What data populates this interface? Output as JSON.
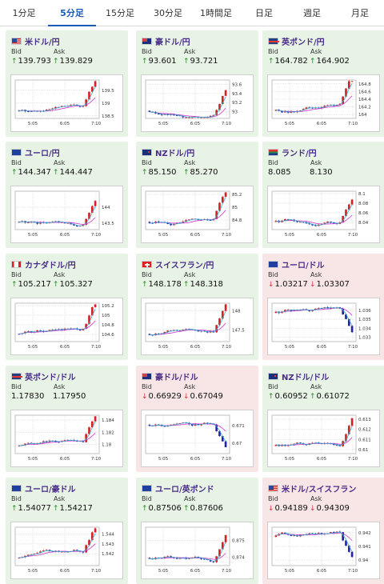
{
  "tabs": [
    "1分足",
    "5分足",
    "15分足",
    "30分足",
    "1時間足",
    "日足",
    "週足",
    "月足"
  ],
  "active_tab": 1,
  "labels": {
    "bid": "Bid",
    "ask": "Ask"
  },
  "x_ticks": [
    "5:05",
    "6:05",
    "7:10"
  ],
  "cards": [
    {
      "name": "米ドル/円",
      "flag": "us",
      "trend": "up",
      "bid": "139.793",
      "ask": "139.829",
      "bid_dir": "up",
      "ask_dir": "up",
      "y_ticks": [
        "139.5",
        "139",
        "138.5"
      ],
      "ymin": 138.4,
      "ymax": 139.9
    },
    {
      "name": "豪ドル/円",
      "flag": "au",
      "trend": "up",
      "bid": "93.601",
      "ask": "93.721",
      "bid_dir": "up",
      "ask_dir": "up",
      "y_ticks": [
        "93.6",
        "93.4",
        "93.2",
        "93"
      ],
      "ymin": 92.85,
      "ymax": 93.7
    },
    {
      "name": "英ポンド/円",
      "flag": "gb",
      "trend": "up",
      "bid": "164.782",
      "ask": "164.902",
      "bid_dir": "up",
      "ask_dir": "up",
      "y_ticks": [
        "164.8",
        "164.6",
        "164.4",
        "164.2",
        "164"
      ],
      "ymin": 163.9,
      "ymax": 164.9
    },
    {
      "name": "ユーロ/円",
      "flag": "eu",
      "trend": "up",
      "bid": "144.347",
      "ask": "144.447",
      "bid_dir": "up",
      "ask_dir": "up",
      "y_ticks": [
        "144",
        "143.5"
      ],
      "ymin": 143.3,
      "ymax": 144.5
    },
    {
      "name": "NZドル/円",
      "flag": "nz",
      "trend": "up",
      "bid": "85.150",
      "ask": "85.270",
      "bid_dir": "up",
      "ask_dir": "up",
      "y_ticks": [
        "85.2",
        "85",
        "84.8"
      ],
      "ymin": 84.65,
      "ymax": 85.25
    },
    {
      "name": "ランド/円",
      "flag": "za",
      "trend": "up",
      "bid": "8.085",
      "ask": "8.130",
      "bid_dir": "none",
      "ask_dir": "none",
      "y_ticks": [
        "8.1",
        "8.08",
        "8.06",
        "8.04"
      ],
      "ymin": 8.025,
      "ymax": 8.105
    },
    {
      "name": "カナダドル/円",
      "flag": "ca",
      "trend": "up",
      "bid": "105.217",
      "ask": "105.327",
      "bid_dir": "up",
      "ask_dir": "up",
      "y_ticks": [
        "105.2",
        "105",
        "104.8",
        "104.6"
      ],
      "ymin": 104.45,
      "ymax": 105.25
    },
    {
      "name": "スイスフラン/円",
      "flag": "ch",
      "trend": "up",
      "bid": "148.178",
      "ask": "148.318",
      "bid_dir": "up",
      "ask_dir": "up",
      "y_ticks": [
        "148",
        "147.5"
      ],
      "ymin": 147.2,
      "ymax": 148.2
    },
    {
      "name": "ユーロ/ドル",
      "flag": "eu",
      "trend": "down",
      "bid": "1.03217",
      "ask": "1.03307",
      "bid_dir": "down",
      "ask_dir": "down",
      "y_ticks": [
        "1.036",
        "1.035",
        "1.034",
        "1.033"
      ],
      "ymin": 1.0325,
      "ymax": 1.0368
    },
    {
      "name": "英ポンド/ドル",
      "flag": "gb",
      "trend": "up",
      "bid": "1.17830",
      "ask": "1.17950",
      "bid_dir": "none",
      "ask_dir": "none",
      "y_ticks": [
        "1.184",
        "1.182",
        "1.18"
      ],
      "ymin": 1.1785,
      "ymax": 1.1848
    },
    {
      "name": "豪ドル/ドル",
      "flag": "au",
      "trend": "down",
      "bid": "0.66929",
      "ask": "0.67049",
      "bid_dir": "down",
      "ask_dir": "down",
      "y_ticks": [
        "0.671",
        "0.67"
      ],
      "ymin": 0.6694,
      "ymax": 0.6716
    },
    {
      "name": "NZドル/ドル",
      "flag": "nz",
      "trend": "up",
      "bid": "0.60952",
      "ask": "0.61072",
      "bid_dir": "up",
      "ask_dir": "up",
      "y_ticks": [
        "0.613",
        "0.612",
        "0.611",
        "0.61"
      ],
      "ymin": 0.6096,
      "ymax": 0.6134
    },
    {
      "name": "ユーロ/豪ドル",
      "flag": "eu",
      "trend": "up",
      "bid": "1.54077",
      "ask": "1.54217",
      "bid_dir": "up",
      "ask_dir": "up",
      "y_ticks": [
        "1.544",
        "1.543",
        "1.542"
      ],
      "ymin": 1.5408,
      "ymax": 1.5447
    },
    {
      "name": "ユーロ/英ポンド",
      "flag": "eu",
      "trend": "up",
      "bid": "0.87506",
      "ask": "0.87606",
      "bid_dir": "up",
      "ask_dir": "up",
      "y_ticks": [
        "0.875",
        "0.874"
      ],
      "ymin": 0.8735,
      "ymax": 0.8758
    },
    {
      "name": "米ドル/スイスフラン",
      "flag": "us",
      "trend": "down",
      "bid": "0.94189",
      "ask": "0.94309",
      "bid_dir": "down",
      "ask_dir": "down",
      "y_ticks": [
        "0.942",
        "0.941",
        "0.94"
      ],
      "ymin": 0.9396,
      "ymax": 0.9424
    }
  ],
  "colors": {
    "up_bg": "#e7f3e4",
    "down_bg": "#f8e6e7",
    "up_candle": "#d22222",
    "down_candle": "#2222aa",
    "ma1": "#cc33cc",
    "ma2": "#33aacc"
  }
}
